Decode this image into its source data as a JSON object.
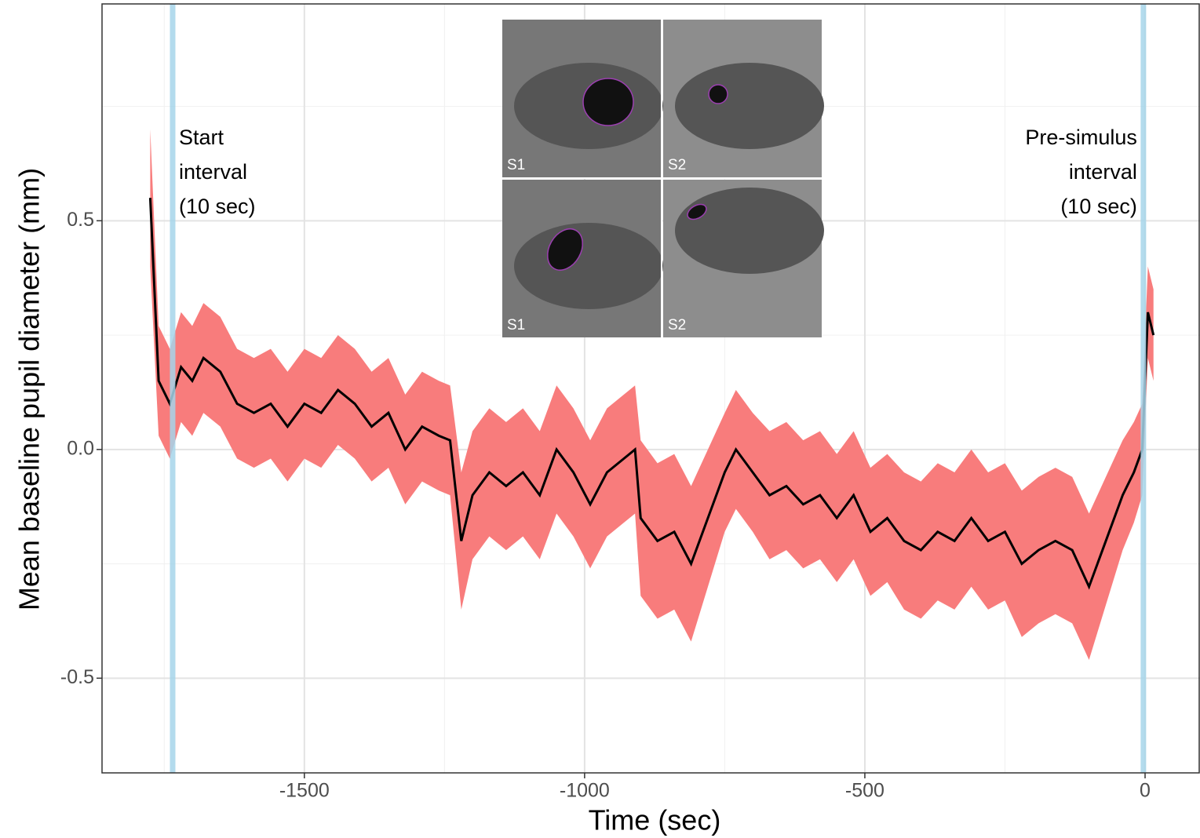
{
  "chart_data": {
    "type": "line",
    "xlabel": "Time (sec)",
    "ylabel": "Mean baseline pupil diameter (mm)",
    "xlim": [
      -1861,
      98
    ],
    "ylim": [
      -0.707,
      0.974
    ],
    "xticks": [
      -1500,
      -1000,
      -500,
      0
    ],
    "yticks": [
      -0.5,
      0.0,
      0.5
    ],
    "minor_xticks": [
      -1750,
      -1250,
      -750,
      -250
    ],
    "minor_yticks": [
      -0.25,
      0.25,
      0.75
    ],
    "grid": true,
    "ribbon_color": "#f87c7c",
    "x": [
      -1775,
      -1760,
      -1740,
      -1720,
      -1700,
      -1680,
      -1650,
      -1620,
      -1590,
      -1560,
      -1530,
      -1500,
      -1470,
      -1440,
      -1410,
      -1380,
      -1350,
      -1320,
      -1290,
      -1260,
      -1240,
      -1220,
      -1200,
      -1170,
      -1140,
      -1110,
      -1080,
      -1050,
      -1020,
      -990,
      -960,
      -930,
      -910,
      -900,
      -870,
      -840,
      -810,
      -780,
      -750,
      -730,
      -700,
      -670,
      -640,
      -610,
      -580,
      -550,
      -520,
      -490,
      -460,
      -430,
      -400,
      -370,
      -340,
      -310,
      -280,
      -250,
      -220,
      -190,
      -160,
      -130,
      -100,
      -70,
      -40,
      -20,
      -5,
      5,
      15
    ],
    "series": [
      {
        "name": "Mean",
        "color": "#000000",
        "values": [
          0.55,
          0.15,
          0.1,
          0.18,
          0.15,
          0.2,
          0.17,
          0.1,
          0.08,
          0.1,
          0.05,
          0.1,
          0.08,
          0.13,
          0.1,
          0.05,
          0.08,
          0.0,
          0.05,
          0.03,
          0.02,
          -0.2,
          -0.1,
          -0.05,
          -0.08,
          -0.05,
          -0.1,
          0.0,
          -0.05,
          -0.12,
          -0.05,
          -0.02,
          0.0,
          -0.15,
          -0.2,
          -0.18,
          -0.25,
          -0.15,
          -0.05,
          0.0,
          -0.05,
          -0.1,
          -0.08,
          -0.12,
          -0.1,
          -0.15,
          -0.1,
          -0.18,
          -0.15,
          -0.2,
          -0.22,
          -0.18,
          -0.2,
          -0.15,
          -0.2,
          -0.18,
          -0.25,
          -0.22,
          -0.2,
          -0.22,
          -0.3,
          -0.2,
          -0.1,
          -0.05,
          0.0,
          0.3,
          0.25
        ],
        "lower": [
          0.4,
          0.03,
          -0.02,
          0.06,
          0.03,
          0.08,
          0.05,
          -0.02,
          -0.04,
          -0.02,
          -0.07,
          -0.02,
          -0.04,
          0.01,
          -0.02,
          -0.07,
          -0.04,
          -0.12,
          -0.07,
          -0.09,
          -0.1,
          -0.35,
          -0.24,
          -0.19,
          -0.22,
          -0.19,
          -0.24,
          -0.14,
          -0.19,
          -0.26,
          -0.19,
          -0.16,
          -0.14,
          -0.32,
          -0.37,
          -0.35,
          -0.42,
          -0.3,
          -0.18,
          -0.13,
          -0.18,
          -0.24,
          -0.22,
          -0.26,
          -0.24,
          -0.29,
          -0.24,
          -0.32,
          -0.29,
          -0.35,
          -0.37,
          -0.33,
          -0.35,
          -0.3,
          -0.35,
          -0.33,
          -0.41,
          -0.38,
          -0.36,
          -0.38,
          -0.46,
          -0.34,
          -0.22,
          -0.16,
          -0.1,
          0.2,
          0.15
        ],
        "upper": [
          0.7,
          0.27,
          0.22,
          0.3,
          0.27,
          0.32,
          0.29,
          0.22,
          0.2,
          0.22,
          0.17,
          0.22,
          0.2,
          0.25,
          0.22,
          0.17,
          0.2,
          0.12,
          0.17,
          0.15,
          0.14,
          -0.05,
          0.04,
          0.09,
          0.06,
          0.09,
          0.04,
          0.14,
          0.09,
          0.02,
          0.09,
          0.12,
          0.14,
          0.02,
          -0.03,
          -0.01,
          -0.08,
          0.0,
          0.08,
          0.13,
          0.08,
          0.04,
          0.06,
          0.02,
          0.04,
          -0.01,
          0.04,
          -0.04,
          -0.01,
          -0.05,
          -0.07,
          -0.03,
          -0.05,
          0.0,
          -0.05,
          -0.03,
          -0.09,
          -0.06,
          -0.04,
          -0.06,
          -0.14,
          -0.06,
          0.02,
          0.06,
          0.1,
          0.4,
          0.35
        ]
      }
    ],
    "vlines": [
      -1735,
      -3
    ],
    "vline_color": "#a6d5ea",
    "annotations": [
      {
        "lines": [
          "Start",
          "interval",
          "(10 sec)"
        ],
        "anchor": "start"
      },
      {
        "lines": [
          "Pre-simulus",
          "interval",
          "(10 sec)"
        ],
        "anchor": "end"
      }
    ],
    "inset_labels": [
      "S1",
      "S2",
      "S1",
      "S2"
    ]
  }
}
